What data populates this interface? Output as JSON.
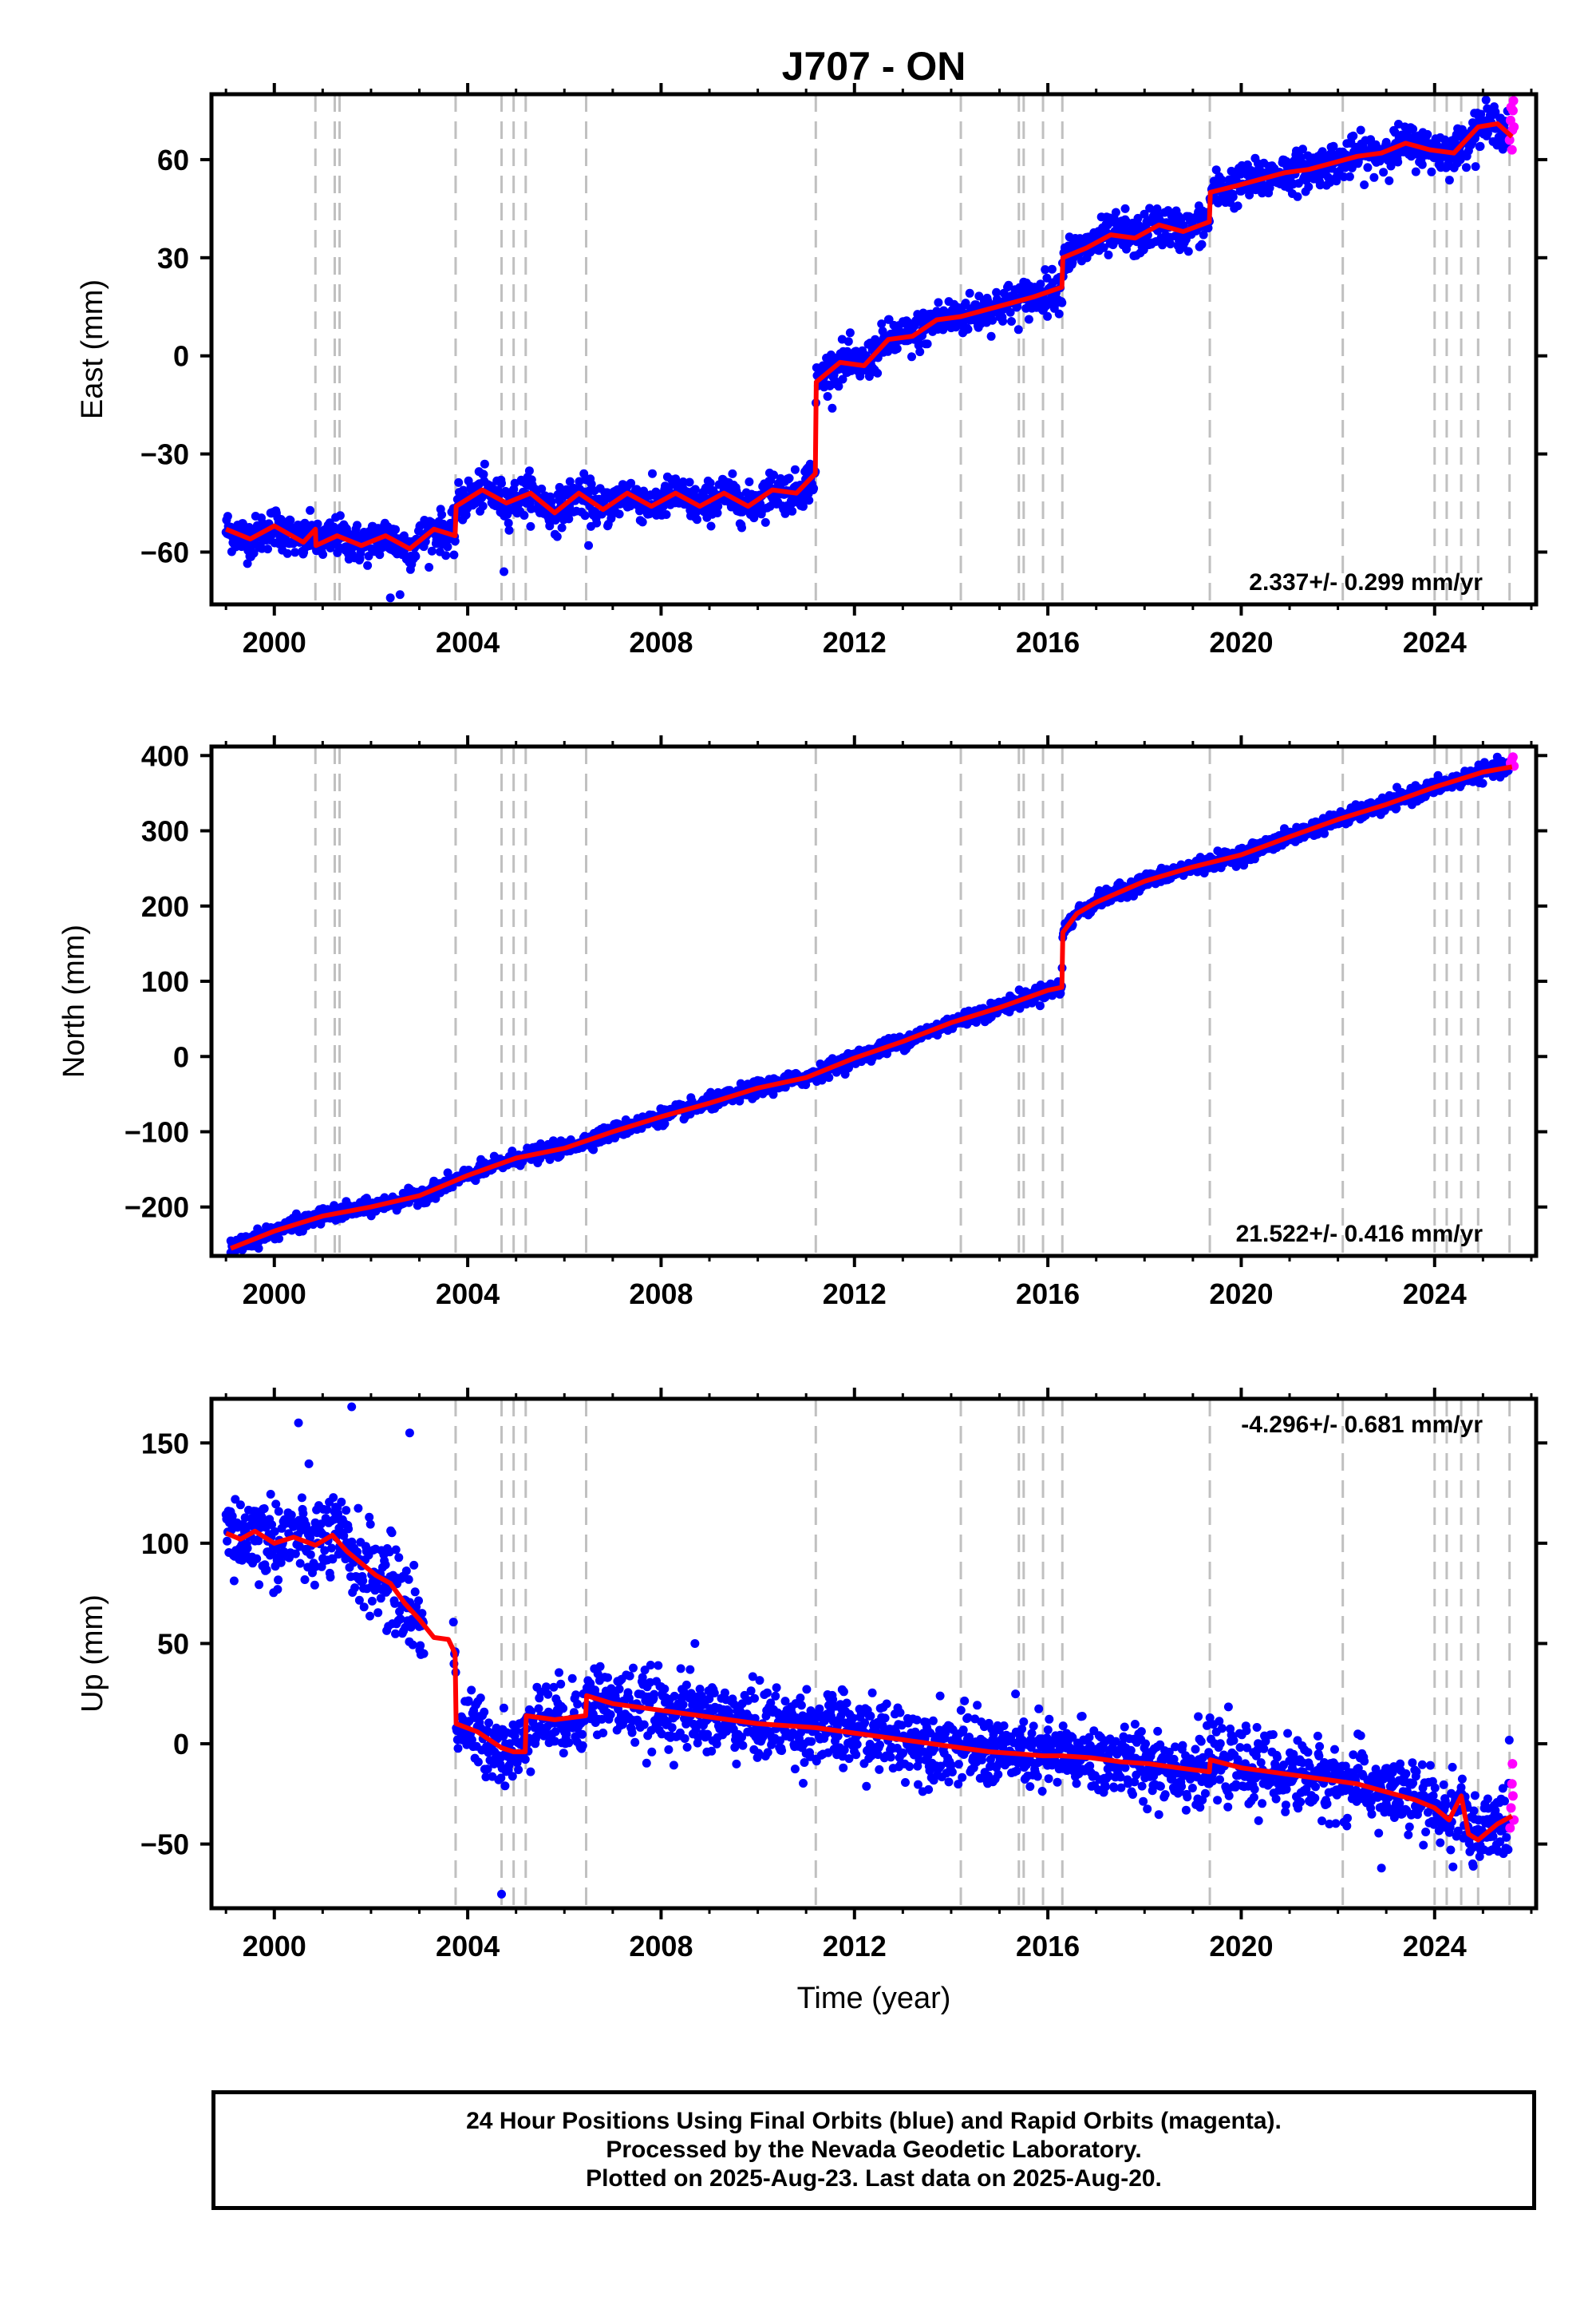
{
  "title": "J707 - ON",
  "x_label": "Time (year)",
  "caption": [
    "24 Hour Positions Using Final Orbits (blue) and Rapid Orbits (magenta).",
    "Processed by the Nevada Geodetic Laboratory.",
    "Plotted on 2025-Aug-23. Last data on 2025-Aug-20."
  ],
  "colors": {
    "final_orbits": "#0000ff",
    "rapid_orbits": "#ff00ff",
    "model": "#ff0000",
    "event_lines": "#c0c0c0"
  },
  "chart_data": [
    {
      "type": "scatter",
      "name": "east",
      "ylabel": "East (mm)",
      "xlim": [
        1998.7,
        2026.1
      ],
      "ylim": [
        -76,
        80
      ],
      "x_ticks": [
        2000,
        2004,
        2008,
        2012,
        2016,
        2020,
        2024
      ],
      "y_ticks": [
        -60,
        -30,
        0,
        30,
        60
      ],
      "rate": "2.337+/- 0.299 mm/yr",
      "rate_position": "bottom-right",
      "event_lines": [
        2000.85,
        2001.25,
        2001.35,
        2003.75,
        2004.7,
        2004.95,
        2005.2,
        2006.45,
        2011.2,
        2014.2,
        2015.4,
        2015.5,
        2015.9,
        2016.3,
        2019.35,
        2022.1,
        2024.0,
        2024.25,
        2024.55,
        2024.9,
        2025.55
      ],
      "model_points": [
        [
          1999.0,
          -53
        ],
        [
          1999.5,
          -56
        ],
        [
          2000.0,
          -52
        ],
        [
          2000.6,
          -57
        ],
        [
          2000.85,
          -53
        ],
        [
          2000.86,
          -58
        ],
        [
          2001.3,
          -55
        ],
        [
          2001.8,
          -58
        ],
        [
          2002.3,
          -55
        ],
        [
          2002.8,
          -59
        ],
        [
          2003.3,
          -53
        ],
        [
          2003.74,
          -55
        ],
        [
          2003.76,
          -46
        ],
        [
          2004.3,
          -41
        ],
        [
          2004.8,
          -45
        ],
        [
          2005.3,
          -42
        ],
        [
          2005.8,
          -48
        ],
        [
          2006.3,
          -42
        ],
        [
          2006.8,
          -47
        ],
        [
          2007.3,
          -42
        ],
        [
          2007.8,
          -46
        ],
        [
          2008.3,
          -42
        ],
        [
          2008.8,
          -46
        ],
        [
          2009.3,
          -42
        ],
        [
          2009.8,
          -46
        ],
        [
          2010.3,
          -41
        ],
        [
          2010.8,
          -42
        ],
        [
          2011.19,
          -36
        ],
        [
          2011.21,
          -8
        ],
        [
          2011.7,
          -2
        ],
        [
          2012.2,
          -3
        ],
        [
          2012.7,
          5
        ],
        [
          2013.2,
          6
        ],
        [
          2013.7,
          11
        ],
        [
          2014.2,
          12
        ],
        [
          2014.7,
          14
        ],
        [
          2015.2,
          16
        ],
        [
          2015.7,
          18
        ],
        [
          2016.29,
          21
        ],
        [
          2016.31,
          30
        ],
        [
          2016.8,
          33
        ],
        [
          2017.3,
          37
        ],
        [
          2017.8,
          36
        ],
        [
          2018.3,
          40
        ],
        [
          2018.8,
          38
        ],
        [
          2019.34,
          41
        ],
        [
          2019.36,
          50
        ],
        [
          2019.9,
          52
        ],
        [
          2020.4,
          54
        ],
        [
          2020.9,
          56
        ],
        [
          2021.4,
          57
        ],
        [
          2021.9,
          59
        ],
        [
          2022.4,
          61
        ],
        [
          2022.9,
          62
        ],
        [
          2023.4,
          65
        ],
        [
          2023.9,
          63
        ],
        [
          2024.4,
          62
        ],
        [
          2024.9,
          70
        ],
        [
          2025.3,
          71
        ],
        [
          2025.6,
          67
        ]
      ],
      "scatter_sigma": 3,
      "rapid_points": [
        [
          2025.55,
          66
        ],
        [
          2025.57,
          72
        ],
        [
          2025.58,
          76
        ],
        [
          2025.6,
          63
        ],
        [
          2025.61,
          69
        ],
        [
          2025.62,
          75
        ],
        [
          2025.63,
          78
        ],
        [
          2025.64,
          70
        ]
      ],
      "outliers": [
        [
          2002.4,
          -74
        ],
        [
          2002.6,
          -73
        ],
        [
          2004.75,
          -66
        ],
        [
          2006.5,
          -58
        ],
        [
          2017.6,
          45
        ]
      ]
    },
    {
      "type": "scatter",
      "name": "north",
      "ylabel": "North (mm)",
      "xlim": [
        1998.7,
        2026.1
      ],
      "ylim": [
        -265,
        412
      ],
      "x_ticks": [
        2000,
        2004,
        2008,
        2012,
        2016,
        2020,
        2024
      ],
      "y_ticks": [
        -200,
        -100,
        0,
        100,
        200,
        300,
        400
      ],
      "rate": "21.522+/- 0.416 mm/yr",
      "rate_position": "bottom-right",
      "event_lines": [
        2000.85,
        2001.25,
        2001.35,
        2003.75,
        2004.7,
        2004.95,
        2005.2,
        2006.45,
        2011.2,
        2014.2,
        2015.4,
        2015.5,
        2015.9,
        2016.3,
        2019.35,
        2022.1,
        2024.0,
        2024.25,
        2024.55,
        2024.9,
        2025.55
      ],
      "model_points": [
        [
          1999.1,
          -255
        ],
        [
          2000.0,
          -232
        ],
        [
          2001.0,
          -212
        ],
        [
          2002.0,
          -200
        ],
        [
          2003.0,
          -185
        ],
        [
          2004.0,
          -158
        ],
        [
          2005.0,
          -135
        ],
        [
          2006.0,
          -122
        ],
        [
          2007.0,
          -100
        ],
        [
          2008.0,
          -80
        ],
        [
          2009.0,
          -62
        ],
        [
          2010.0,
          -42
        ],
        [
          2011.0,
          -28
        ],
        [
          2012.0,
          -2
        ],
        [
          2013.0,
          20
        ],
        [
          2014.0,
          45
        ],
        [
          2015.0,
          65
        ],
        [
          2016.0,
          88
        ],
        [
          2016.29,
          92
        ],
        [
          2016.31,
          165
        ],
        [
          2016.6,
          190
        ],
        [
          2017.0,
          205
        ],
        [
          2018.0,
          233
        ],
        [
          2019.0,
          252
        ],
        [
          2020.0,
          268
        ],
        [
          2021.0,
          292
        ],
        [
          2022.0,
          315
        ],
        [
          2023.0,
          335
        ],
        [
          2024.0,
          358
        ],
        [
          2025.0,
          378
        ],
        [
          2025.6,
          385
        ]
      ],
      "scatter_sigma": 5,
      "rapid_points": [
        [
          2025.57,
          390
        ],
        [
          2025.6,
          395
        ],
        [
          2025.62,
          398
        ],
        [
          2025.64,
          386
        ]
      ],
      "outliers": [
        [
          1999.1,
          -245
        ],
        [
          1999.2,
          -248
        ]
      ]
    },
    {
      "type": "scatter",
      "name": "up",
      "ylabel": "Up (mm)",
      "xlim": [
        1998.7,
        2026.1
      ],
      "ylim": [
        -82,
        172
      ],
      "x_ticks": [
        2000,
        2004,
        2008,
        2012,
        2016,
        2020,
        2024
      ],
      "y_ticks": [
        -50,
        0,
        50,
        100,
        150
      ],
      "rate": "-4.296+/- 0.681 mm/yr",
      "rate_position": "top-right",
      "event_lines": [
        2003.75,
        2004.7,
        2004.95,
        2005.2,
        2006.45,
        2011.2,
        2014.2,
        2015.4,
        2015.5,
        2015.9,
        2016.3,
        2019.35,
        2022.1,
        2024.0,
        2024.25,
        2024.55,
        2024.9,
        2025.55
      ],
      "model_points": [
        [
          1999.0,
          105
        ],
        [
          1999.3,
          102
        ],
        [
          1999.6,
          106
        ],
        [
          2000.0,
          100
        ],
        [
          2000.4,
          103
        ],
        [
          2000.85,
          99
        ],
        [
          2001.2,
          104
        ],
        [
          2001.5,
          96
        ],
        [
          2001.8,
          90
        ],
        [
          2002.1,
          84
        ],
        [
          2002.4,
          80
        ],
        [
          2002.7,
          70
        ],
        [
          2003.0,
          62
        ],
        [
          2003.3,
          53
        ],
        [
          2003.6,
          52
        ],
        [
          2003.74,
          45
        ],
        [
          2003.76,
          10
        ],
        [
          2004.2,
          6
        ],
        [
          2004.7,
          -2
        ],
        [
          2004.95,
          -4
        ],
        [
          2005.19,
          -4
        ],
        [
          2005.21,
          14
        ],
        [
          2005.8,
          12
        ],
        [
          2006.44,
          14
        ],
        [
          2006.46,
          24
        ],
        [
          2007.0,
          20
        ],
        [
          2007.6,
          18
        ],
        [
          2008.2,
          16
        ],
        [
          2008.8,
          14
        ],
        [
          2009.4,
          12
        ],
        [
          2010.0,
          10
        ],
        [
          2010.6,
          9
        ],
        [
          2011.2,
          8
        ],
        [
          2011.8,
          6
        ],
        [
          2012.4,
          4
        ],
        [
          2013.0,
          2
        ],
        [
          2013.6,
          0
        ],
        [
          2014.2,
          -2
        ],
        [
          2014.8,
          -4
        ],
        [
          2015.4,
          -5
        ],
        [
          2015.9,
          -6
        ],
        [
          2016.3,
          -6
        ],
        [
          2016.9,
          -7
        ],
        [
          2017.5,
          -9
        ],
        [
          2018.1,
          -10
        ],
        [
          2018.7,
          -12
        ],
        [
          2019.34,
          -14
        ],
        [
          2019.36,
          -8
        ],
        [
          2020.0,
          -12
        ],
        [
          2020.6,
          -14
        ],
        [
          2021.2,
          -16
        ],
        [
          2021.8,
          -18
        ],
        [
          2022.4,
          -20
        ],
        [
          2023.0,
          -24
        ],
        [
          2023.6,
          -28
        ],
        [
          2024.0,
          -32
        ],
        [
          2024.3,
          -38
        ],
        [
          2024.55,
          -26
        ],
        [
          2024.7,
          -45
        ],
        [
          2024.9,
          -48
        ],
        [
          2025.3,
          -40
        ],
        [
          2025.6,
          -36
        ]
      ],
      "scatter_sigma": 9,
      "gap": [
        2003.1,
        2003.7
      ],
      "rapid_points": [
        [
          2025.56,
          -42
        ],
        [
          2025.58,
          -32
        ],
        [
          2025.6,
          -20
        ],
        [
          2025.61,
          -10
        ],
        [
          2025.62,
          -26
        ],
        [
          2025.64,
          -38
        ]
      ],
      "outliers": [
        [
          2000.5,
          160
        ],
        [
          2001.6,
          168
        ],
        [
          2002.8,
          155
        ],
        [
          2004.7,
          -75
        ],
        [
          2008.7,
          50
        ],
        [
          2022.9,
          -62
        ]
      ]
    }
  ],
  "x_tick_labels": [
    "2000",
    "2004",
    "2008",
    "2012",
    "2016",
    "2020",
    "2024"
  ],
  "y_tick_labels": {
    "east": [
      "−60",
      "−30",
      "0",
      "30",
      "60"
    ],
    "north": [
      "−200",
      "−100",
      "0",
      "100",
      "200",
      "300",
      "400"
    ],
    "up": [
      "−50",
      "0",
      "50",
      "100",
      "150"
    ]
  }
}
